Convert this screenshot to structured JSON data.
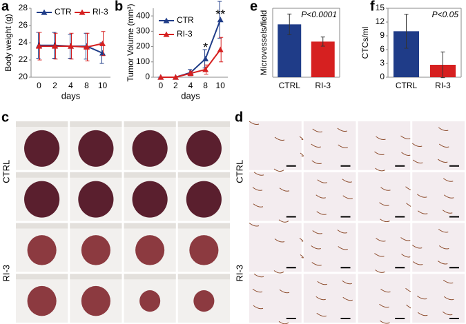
{
  "chart_data": [
    {
      "type": "line",
      "panel_label": "a",
      "ylabel": "Body weight (g)",
      "xlabel": "days",
      "categories": [
        "0",
        "2",
        "4",
        "8",
        "10"
      ],
      "ylim": [
        20,
        28
      ],
      "yticks": [
        20,
        22,
        24,
        26,
        28
      ],
      "legend": "top",
      "series": [
        {
          "name": "CTR",
          "color": "#1f3c88",
          "values": [
            23.7,
            23.7,
            23.6,
            23.6,
            22.8
          ],
          "errors": [
            1.5,
            1.5,
            1.4,
            1.5,
            1.2
          ]
        },
        {
          "name": "RI-3",
          "color": "#d62020",
          "values": [
            23.6,
            23.6,
            23.6,
            23.5,
            23.9
          ],
          "errors": [
            1.6,
            1.5,
            1.5,
            1.6,
            1.4
          ]
        }
      ]
    },
    {
      "type": "line",
      "panel_label": "b",
      "ylabel": "Tumor Volume (mm³)",
      "xlabel": "days",
      "categories": [
        "0",
        "2",
        "4",
        "8",
        "10"
      ],
      "ylim": [
        0,
        450
      ],
      "yticks": [
        0,
        100,
        200,
        300,
        400
      ],
      "legend": "top-left",
      "annotations": [
        {
          "text": "*",
          "x": "8"
        },
        {
          "text": "**",
          "x": "10"
        }
      ],
      "series": [
        {
          "name": "CTR",
          "color": "#1f3c88",
          "values": [
            0,
            0,
            30,
            120,
            375
          ],
          "errors": [
            0,
            0,
            20,
            60,
            120
          ]
        },
        {
          "name": "RI-3",
          "color": "#d62020",
          "values": [
            0,
            0,
            25,
            50,
            180
          ],
          "errors": [
            0,
            0,
            15,
            30,
            80
          ]
        }
      ]
    },
    {
      "type": "bar",
      "panel_label": "e",
      "ylabel": "Microvessels/field",
      "annotation": "P<0.0001",
      "categories": [
        "CTRL",
        "RI-3"
      ],
      "ylim": [
        0,
        60
      ],
      "colors": [
        "#1f3c88",
        "#d62020"
      ],
      "values": [
        46,
        31
      ],
      "errors": [
        9,
        4
      ]
    },
    {
      "type": "bar",
      "panel_label": "f",
      "ylabel": "CTCs/ml",
      "annotation": "P<0.05",
      "categories": [
        "CTRL",
        "RI-3"
      ],
      "ylim": [
        0,
        15
      ],
      "yticks": [
        0,
        3,
        6,
        9,
        12,
        15
      ],
      "colors": [
        "#1f3c88",
        "#d62020"
      ],
      "values": [
        10,
        2.7
      ],
      "errors": [
        3.7,
        2.8
      ]
    }
  ],
  "image_panels": [
    {
      "label": "c",
      "rows": [
        "CTRL",
        "RI-3"
      ]
    },
    {
      "label": "d",
      "rows": [
        "CTRL",
        "RI-3"
      ]
    }
  ]
}
